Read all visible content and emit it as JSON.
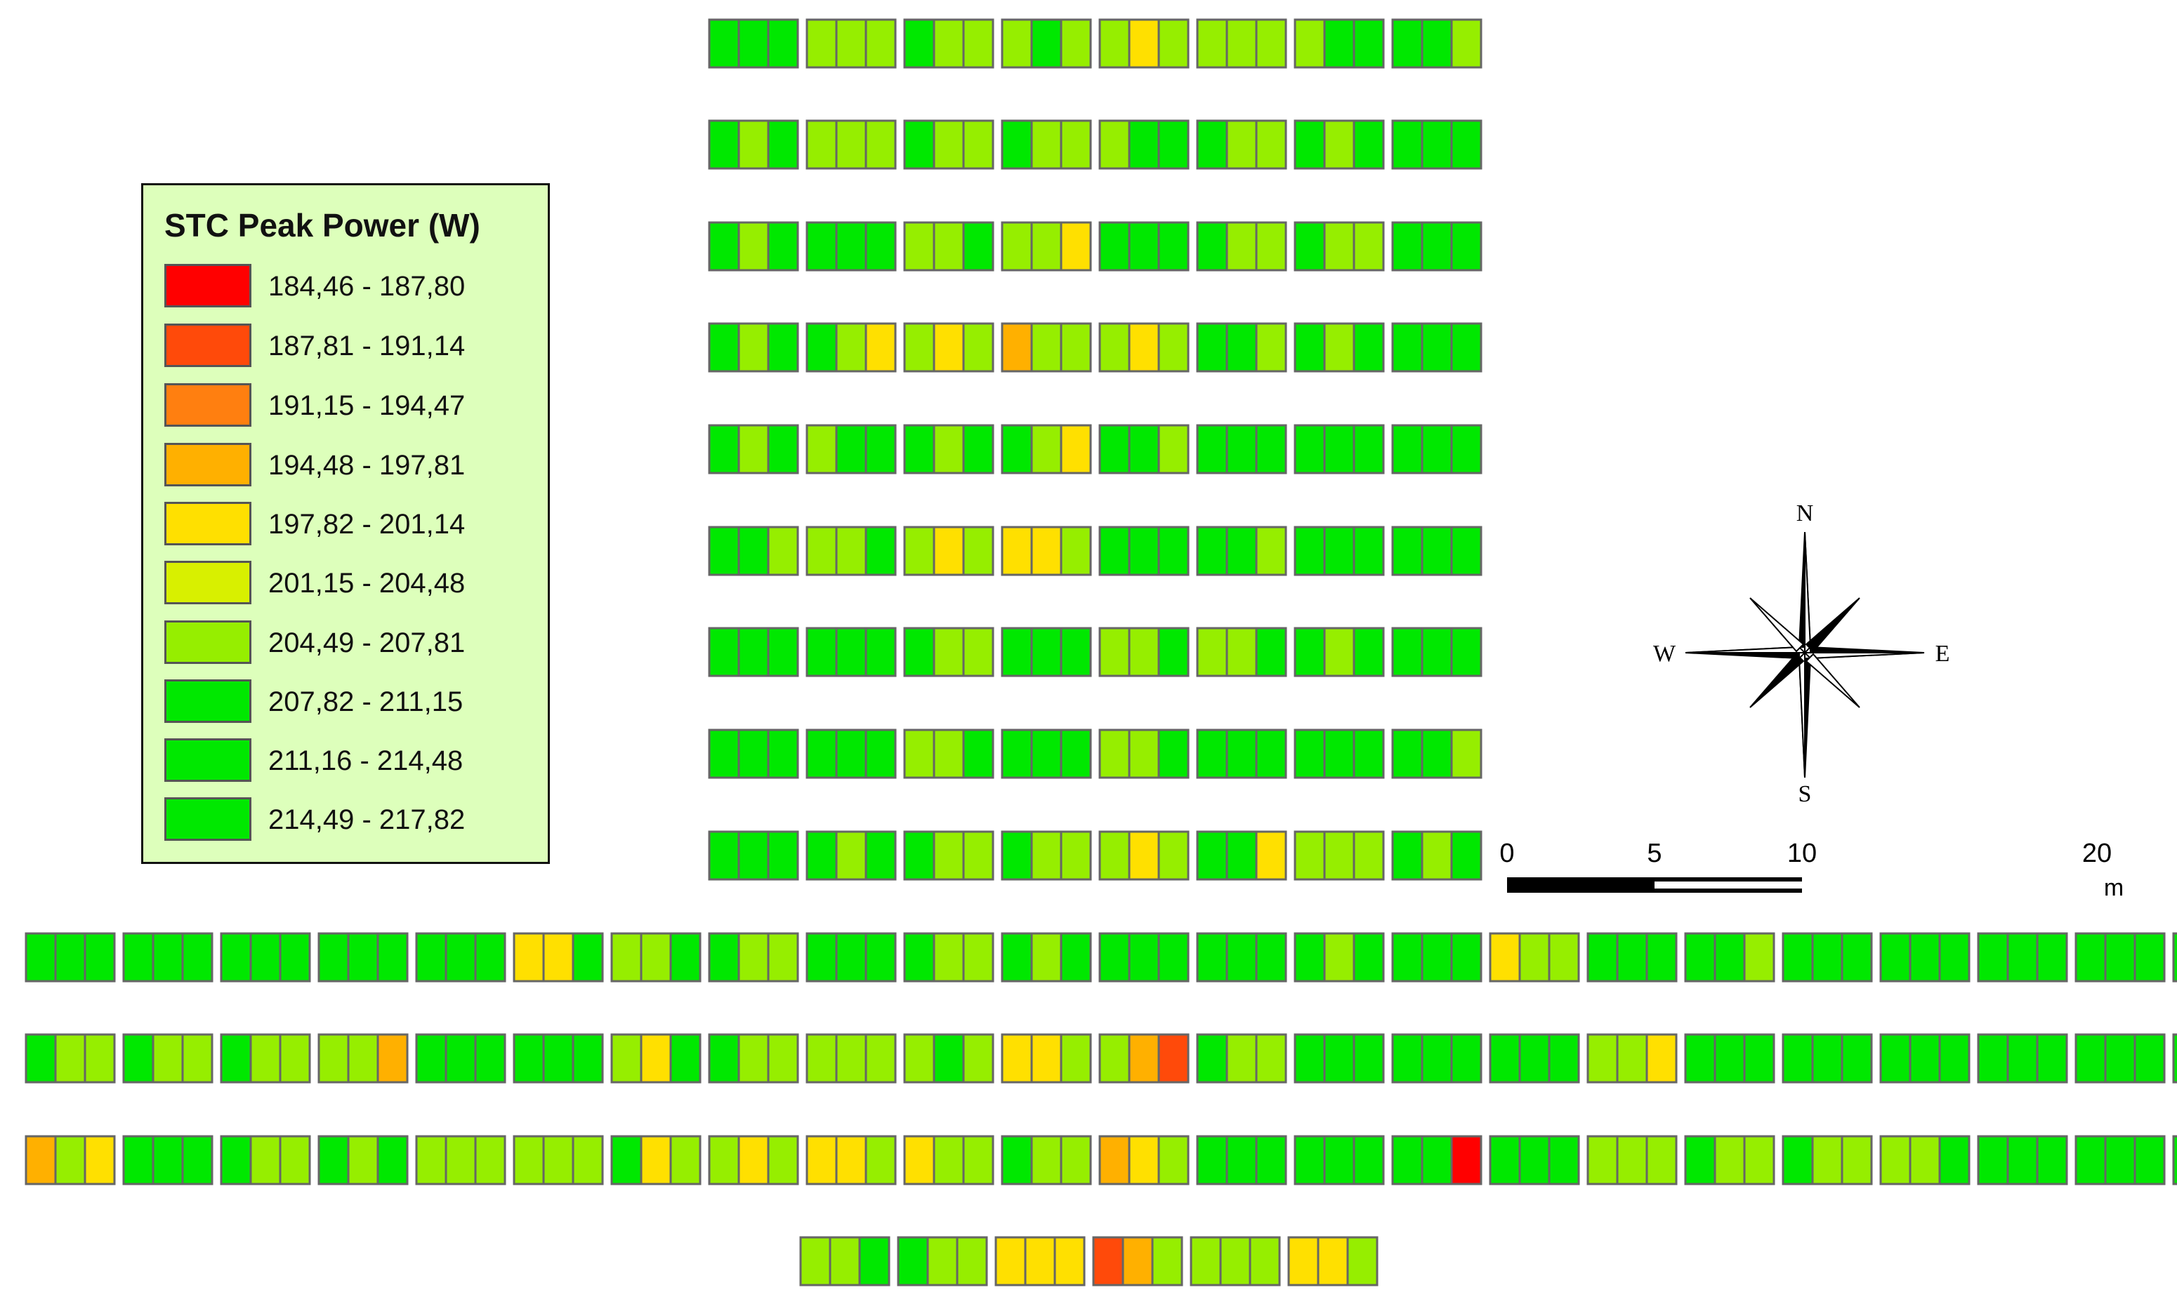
{
  "legend": {
    "title": "STC Peak Power (W)",
    "classes": [
      {
        "label": "184,46 - 187,80",
        "color": "#ff0000"
      },
      {
        "label": "187,81 - 191,14",
        "color": "#ff4a0a"
      },
      {
        "label": "191,15 - 194,47",
        "color": "#ff7f10"
      },
      {
        "label": "194,48 - 197,81",
        "color": "#ffb000"
      },
      {
        "label": "197,82 - 201,14",
        "color": "#ffe000"
      },
      {
        "label": "201,15 - 204,48",
        "color": "#d8f000"
      },
      {
        "label": "204,49 - 207,81",
        "color": "#96ee00"
      },
      {
        "label": "207,82 - 211,15",
        "color": "#00e800"
      },
      {
        "label": "211,16 - 214,48",
        "color": "#00e800"
      },
      {
        "label": "214,49 - 217,82",
        "color": "#00e800"
      }
    ]
  },
  "compass": {
    "north": "N",
    "south": "S",
    "east": "E",
    "west": "W"
  },
  "scale_bar": {
    "labels": [
      "0",
      "5",
      "10",
      "20"
    ],
    "values": [
      0,
      5,
      10,
      20
    ],
    "max": 20,
    "unit": "m"
  },
  "panel_field": {
    "panel_rows": [
      [
        "GGG",
        "LLL",
        "GLL",
        "LGL",
        "LYL",
        "LLL",
        "LGG",
        "GGL"
      ],
      [
        "GLG",
        "LLL",
        "GLL",
        "GLL",
        "LGG",
        "GLL",
        "GLG",
        "GGG"
      ],
      [
        "GLG",
        "GGG",
        "LLG",
        "LLY",
        "GGG",
        "GLL",
        "GLL",
        "GGG"
      ],
      [
        "GLG",
        "GLY",
        "LYL",
        "OLL",
        "LYL",
        "GGL",
        "GLG",
        "GGG"
      ],
      [
        "GLG",
        "LGG",
        "GLG",
        "GLY",
        "GGL",
        "GGG",
        "GGG",
        "GGG"
      ],
      [
        "GGL",
        "LLG",
        "LYL",
        "YYL",
        "GGG",
        "GGL",
        "GGG",
        "GGG"
      ],
      [
        "GGG",
        "GGG",
        "GLL",
        "GGG",
        "LLG",
        "LLG",
        "GLG",
        "GGG"
      ],
      [
        "GGG",
        "GGG",
        "LLG",
        "GGG",
        "LLG",
        "GGG",
        "GGG",
        "GGL"
      ],
      [
        "GGG",
        "GLG",
        "GLL",
        "GLL",
        "LYL",
        "GGY",
        "LLL",
        "GLG"
      ],
      [
        "GGG",
        "GGG",
        "GGG",
        "GGG",
        "GGG",
        "YYG",
        "LLG",
        "GLL",
        "GGG",
        "GLL",
        "GLG",
        "GGG",
        "GGG",
        "GLG",
        "GGG",
        "YLL",
        "GGG",
        "GGL",
        "GGG",
        "GGG",
        "GGG",
        "GGG",
        "GLL"
      ],
      [
        "GLL",
        "GLL",
        "GLL",
        "LLO",
        "GGG",
        "GGG",
        "LYG",
        "GLL",
        "LLL",
        "LGL",
        "YYL",
        "LOF",
        "GLL",
        "GGG",
        "GGG",
        "GGG",
        "LLY",
        "GGG",
        "GGG",
        "GGG",
        "GGG",
        "GGG",
        "GGG"
      ],
      [
        "OLY",
        "GGG",
        "GLL",
        "GLG",
        "LLL",
        "LLL",
        "GYL",
        "LYL",
        "YYL",
        "YLL",
        "GLL",
        "OYL",
        "GGG",
        "GGG",
        "GGR",
        "GGG",
        "LLL",
        "GLL",
        "GLL",
        "LLG",
        "GGG",
        "GGG",
        "GGG"
      ],
      [
        "LLG",
        "GLL",
        "YYY",
        "FOL",
        "LLL",
        "YYL"
      ]
    ]
  }
}
